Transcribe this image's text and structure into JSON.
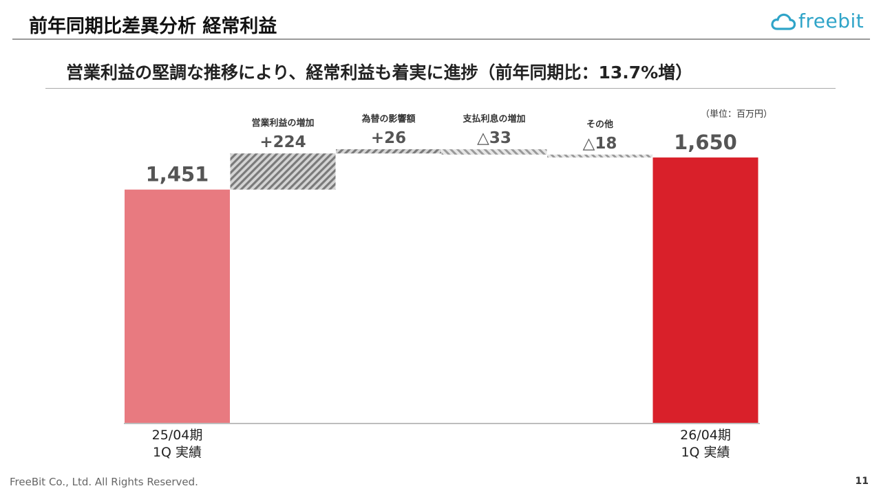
{
  "header": {
    "title": "前年同期比差異分析 経常利益",
    "logo_text": "freebit",
    "logo_color": "#2fa4c8"
  },
  "subtitle": "営業利益の堅調な推移により、経常利益も着実に進捗（前年同期比：13.7%増）",
  "chart_data": {
    "type": "bar",
    "subtype": "waterfall",
    "unit_label": "（単位：百万円）",
    "grid": false,
    "bars": [
      {
        "kind": "total",
        "value": 1451,
        "value_label": "1,451",
        "category": [
          "25/04期",
          "1Q 実績"
        ],
        "color": "#e87a80"
      },
      {
        "kind": "delta",
        "value": 224,
        "value_label": "+224",
        "title": "営業利益の増加",
        "pattern": "hatch-dark"
      },
      {
        "kind": "delta",
        "value": 26,
        "value_label": "+26",
        "title": "為替の影響額",
        "pattern": "hatch-dark"
      },
      {
        "kind": "delta",
        "value": -33,
        "value_label": "△33",
        "title": "支払利息の増加",
        "pattern": "hatch-light"
      },
      {
        "kind": "delta",
        "value": -18,
        "value_label": "△18",
        "title": "その他",
        "pattern": "hatch-light"
      },
      {
        "kind": "total",
        "value": 1650,
        "value_label": "1,650",
        "category": [
          "26/04期",
          "1Q 実績"
        ],
        "color": "#d9202a"
      }
    ]
  },
  "footer": {
    "copyright": "FreeBit Co., Ltd. All Rights Reserved.",
    "page_number": "11"
  }
}
